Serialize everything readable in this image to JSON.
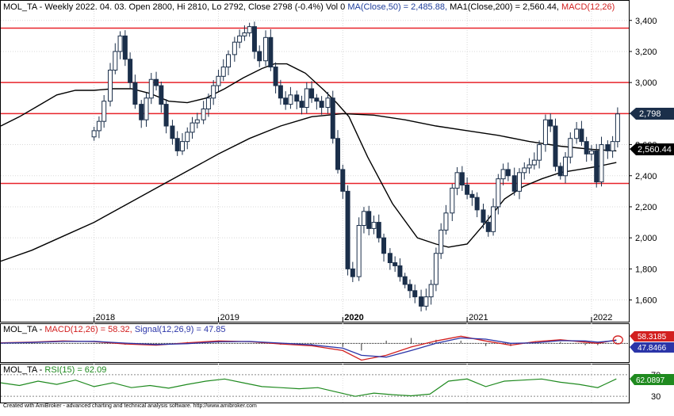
{
  "price_panel": {
    "title_prefix": "MOL_TA - Weekly 2022. 04. 03. Open 2800, Hi 2810, Lo 2792, Close 2798 (-0.4%) Vol 0",
    "ma50_label": "MA(Close,50) = 2,485.88,",
    "ma200_label": "MA1(Close,200) = 2,560.44,",
    "macd_label": "MACD(12,26)",
    "last_close_badge": "2,798",
    "ma200_badge": "2,560.44"
  },
  "macd_panel": {
    "title_prefix": "MOL_TA -",
    "macd_label": "MACD(12,26) = 58.32,",
    "signal_label": "Signal(12,26,9) = 47.85",
    "macd_badge": "58.3185",
    "signal_badge": "47.8466"
  },
  "rsi_panel": {
    "title_prefix": "MOL_TA -",
    "rsi_label": "RSI(15) = 62.09",
    "rsi_badge": "62.0897"
  },
  "footer": "Created with AmiBroker - advanced charting and technical analysis software. http://www.amibroker.com",
  "colors": {
    "candle_up": "#ffffff",
    "candle_down": "#1b2f4a",
    "ma50": "#000000",
    "ma200": "#000000",
    "hline": "#e8232a",
    "macd": "#d21f1f",
    "signal": "#2b35a8",
    "rsi": "#1f8a1f",
    "label_blue": "#1f3f9c",
    "label_red": "#d21f1f",
    "label_green": "#1f8a1f"
  },
  "chart_data": [
    {
      "type": "candlestick",
      "series": [
        {
          "name": "MOL_TA",
          "values": [
            [
              2018.0,
              2690
            ],
            [
              2018.04,
              2750
            ],
            [
              2018.08,
              2880
            ],
            [
              2018.13,
              3080
            ],
            [
              2018.17,
              3200
            ],
            [
              2018.21,
              3300
            ],
            [
              2018.25,
              3150
            ],
            [
              2018.29,
              3000
            ],
            [
              2018.33,
              2860
            ],
            [
              2018.38,
              2760
            ],
            [
              2018.42,
              2900
            ],
            [
              2018.46,
              3020
            ],
            [
              2018.5,
              2980
            ],
            [
              2018.54,
              2860
            ],
            [
              2018.58,
              2720
            ],
            [
              2018.63,
              2640
            ],
            [
              2018.67,
              2560
            ],
            [
              2018.71,
              2620
            ],
            [
              2018.75,
              2680
            ],
            [
              2018.79,
              2740
            ],
            [
              2018.83,
              2760
            ],
            [
              2018.88,
              2830
            ],
            [
              2018.92,
              2900
            ],
            [
              2018.96,
              2980
            ],
            [
              2019.0,
              3040
            ],
            [
              2019.04,
              3100
            ],
            [
              2019.08,
              3180
            ],
            [
              2019.13,
              3260
            ],
            [
              2019.17,
              3300
            ],
            [
              2019.21,
              3320
            ],
            [
              2019.25,
              3360
            ],
            [
              2019.29,
              3200
            ],
            [
              2019.33,
              3140
            ],
            [
              2019.38,
              3290
            ],
            [
              2019.42,
              3100
            ],
            [
              2019.46,
              2980
            ],
            [
              2019.5,
              2900
            ],
            [
              2019.54,
              2860
            ],
            [
              2019.58,
              2920
            ],
            [
              2019.63,
              2880
            ],
            [
              2019.67,
              2840
            ],
            [
              2019.71,
              2960
            ],
            [
              2019.75,
              2900
            ],
            [
              2019.79,
              2880
            ],
            [
              2019.83,
              2840
            ],
            [
              2019.88,
              2900
            ],
            [
              2019.92,
              2640
            ],
            [
              2019.96,
              2440
            ],
            [
              2020.0,
              2300
            ],
            [
              2020.04,
              1800
            ],
            [
              2020.08,
              1750
            ],
            [
              2020.13,
              2080
            ],
            [
              2020.17,
              2170
            ],
            [
              2020.21,
              2060
            ],
            [
              2020.25,
              2100
            ],
            [
              2020.29,
              2000
            ],
            [
              2020.33,
              1900
            ],
            [
              2020.38,
              1840
            ],
            [
              2020.42,
              1820
            ],
            [
              2020.46,
              1750
            ],
            [
              2020.5,
              1700
            ],
            [
              2020.54,
              1660
            ],
            [
              2020.58,
              1620
            ],
            [
              2020.63,
              1560
            ],
            [
              2020.67,
              1620
            ],
            [
              2020.71,
              1700
            ],
            [
              2020.75,
              1900
            ],
            [
              2020.79,
              2050
            ],
            [
              2020.83,
              2160
            ],
            [
              2020.88,
              2320
            ],
            [
              2020.92,
              2420
            ],
            [
              2020.96,
              2340
            ],
            [
              2021.0,
              2280
            ],
            [
              2021.04,
              2260
            ],
            [
              2021.08,
              2180
            ],
            [
              2021.13,
              2100
            ],
            [
              2021.17,
              2040
            ],
            [
              2021.21,
              2200
            ],
            [
              2021.25,
              2380
            ],
            [
              2021.29,
              2440
            ],
            [
              2021.33,
              2400
            ],
            [
              2021.38,
              2300
            ],
            [
              2021.42,
              2420
            ],
            [
              2021.46,
              2450
            ],
            [
              2021.5,
              2470
            ],
            [
              2021.54,
              2500
            ],
            [
              2021.58,
              2600
            ],
            [
              2021.63,
              2760
            ],
            [
              2021.67,
              2720
            ],
            [
              2021.71,
              2460
            ],
            [
              2021.75,
              2400
            ],
            [
              2021.79,
              2520
            ],
            [
              2021.83,
              2640
            ],
            [
              2021.88,
              2700
            ],
            [
              2021.92,
              2620
            ],
            [
              2021.96,
              2540
            ],
            [
              2022.0,
              2560
            ],
            [
              2022.04,
              2360
            ],
            [
              2022.08,
              2600
            ],
            [
              2022.13,
              2560
            ],
            [
              2022.17,
              2620
            ],
            [
              2022.21,
              2798
            ]
          ]
        }
      ],
      "x": [
        "2018",
        "2019",
        "2020",
        "2021",
        "2022"
      ],
      "xlim": [
        2017.25,
        2022.3
      ],
      "ylim": [
        1460,
        3460
      ],
      "y_ticks": [
        "1,600",
        "1,800",
        "2,000",
        "2,200",
        "2,400",
        "2,600",
        "2,800",
        "3,000",
        "3,200",
        "3,400"
      ],
      "horizontal_lines": [
        3350,
        3000,
        2800,
        2350
      ],
      "overlays": [
        {
          "name": "MA(Close,50)",
          "points": [
            [
              2017.25,
              2720
            ],
            [
              2017.4,
              2780
            ],
            [
              2017.55,
              2850
            ],
            [
              2017.7,
              2920
            ],
            [
              2017.85,
              2950
            ],
            [
              2018.0,
              2950
            ],
            [
              2018.15,
              2960
            ],
            [
              2018.3,
              2960
            ],
            [
              2018.45,
              2930
            ],
            [
              2018.6,
              2880
            ],
            [
              2018.75,
              2870
            ],
            [
              2018.9,
              2900
            ],
            [
              2019.05,
              2960
            ],
            [
              2019.2,
              3030
            ],
            [
              2019.35,
              3090
            ],
            [
              2019.45,
              3120
            ],
            [
              2019.55,
              3120
            ],
            [
              2019.7,
              3060
            ],
            [
              2019.85,
              2950
            ],
            [
              2019.95,
              2870
            ],
            [
              2020.05,
              2780
            ],
            [
              2020.2,
              2520
            ],
            [
              2020.4,
              2220
            ],
            [
              2020.6,
              2000
            ],
            [
              2020.75,
              1960
            ],
            [
              2020.85,
              1940
            ],
            [
              2021.0,
              1960
            ],
            [
              2021.15,
              2100
            ],
            [
              2021.3,
              2250
            ],
            [
              2021.45,
              2330
            ],
            [
              2021.6,
              2380
            ],
            [
              2021.75,
              2420
            ],
            [
              2021.9,
              2440
            ],
            [
              2022.05,
              2460
            ],
            [
              2022.2,
              2485
            ]
          ]
        },
        {
          "name": "MA1(Close,200)",
          "points": [
            [
              2017.25,
              1850
            ],
            [
              2017.5,
              1920
            ],
            [
              2017.75,
              2010
            ],
            [
              2018.0,
              2100
            ],
            [
              2018.25,
              2210
            ],
            [
              2018.5,
              2320
            ],
            [
              2018.75,
              2430
            ],
            [
              2019.0,
              2540
            ],
            [
              2019.25,
              2640
            ],
            [
              2019.5,
              2720
            ],
            [
              2019.75,
              2780
            ],
            [
              2020.0,
              2800
            ],
            [
              2020.25,
              2790
            ],
            [
              2020.5,
              2760
            ],
            [
              2020.75,
              2720
            ],
            [
              2021.0,
              2690
            ],
            [
              2021.25,
              2660
            ],
            [
              2021.5,
              2620
            ],
            [
              2021.75,
              2590
            ],
            [
              2022.0,
              2570
            ],
            [
              2022.2,
              2560
            ]
          ]
        }
      ]
    },
    {
      "type": "line",
      "title": "MACD(12,26)",
      "series": [
        {
          "name": "MACD(12,26)",
          "values": [
            [
              2017.25,
              10
            ],
            [
              2017.5,
              20
            ],
            [
              2017.75,
              40
            ],
            [
              2018.0,
              30
            ],
            [
              2018.25,
              -10
            ],
            [
              2018.5,
              -30
            ],
            [
              2018.75,
              10
            ],
            [
              2019.0,
              40
            ],
            [
              2019.25,
              30
            ],
            [
              2019.5,
              -10
            ],
            [
              2019.75,
              -40
            ],
            [
              2020.0,
              -120
            ],
            [
              2020.15,
              -280
            ],
            [
              2020.35,
              -200
            ],
            [
              2020.55,
              -60
            ],
            [
              2020.75,
              40
            ],
            [
              2020.95,
              120
            ],
            [
              2021.15,
              40
            ],
            [
              2021.35,
              -30
            ],
            [
              2021.55,
              30
            ],
            [
              2021.75,
              60
            ],
            [
              2021.95,
              20
            ],
            [
              2022.05,
              0
            ],
            [
              2022.2,
              58.32
            ]
          ]
        },
        {
          "name": "Signal(12,26,9)",
          "values": [
            [
              2017.25,
              5
            ],
            [
              2017.5,
              15
            ],
            [
              2017.75,
              32
            ],
            [
              2018.0,
              34
            ],
            [
              2018.25,
              5
            ],
            [
              2018.5,
              -20
            ],
            [
              2018.75,
              -5
            ],
            [
              2019.0,
              25
            ],
            [
              2019.25,
              32
            ],
            [
              2019.5,
              5
            ],
            [
              2019.75,
              -25
            ],
            [
              2020.0,
              -80
            ],
            [
              2020.15,
              -200
            ],
            [
              2020.35,
              -230
            ],
            [
              2020.55,
              -120
            ],
            [
              2020.75,
              0
            ],
            [
              2020.95,
              90
            ],
            [
              2021.15,
              70
            ],
            [
              2021.35,
              0
            ],
            [
              2021.55,
              10
            ],
            [
              2021.75,
              45
            ],
            [
              2021.95,
              40
            ],
            [
              2022.05,
              20
            ],
            [
              2022.2,
              47.85
            ]
          ]
        }
      ],
      "ylim": [
        -300,
        150
      ]
    },
    {
      "type": "line",
      "title": "RSI(15)",
      "series": [
        {
          "name": "RSI(15)",
          "values": [
            [
              2017.25,
              55
            ],
            [
              2017.4,
              50
            ],
            [
              2017.55,
              58
            ],
            [
              2017.7,
              52
            ],
            [
              2017.85,
              60
            ],
            [
              2018.0,
              48
            ],
            [
              2018.15,
              55
            ],
            [
              2018.3,
              46
            ],
            [
              2018.45,
              50
            ],
            [
              2018.6,
              45
            ],
            [
              2018.75,
              52
            ],
            [
              2018.9,
              58
            ],
            [
              2019.05,
              62
            ],
            [
              2019.2,
              55
            ],
            [
              2019.35,
              48
            ],
            [
              2019.5,
              46
            ],
            [
              2019.65,
              44
            ],
            [
              2019.8,
              46
            ],
            [
              2019.95,
              38
            ],
            [
              2020.1,
              30
            ],
            [
              2020.25,
              36
            ],
            [
              2020.4,
              33
            ],
            [
              2020.55,
              31
            ],
            [
              2020.7,
              34
            ],
            [
              2020.85,
              58
            ],
            [
              2021.0,
              62
            ],
            [
              2021.15,
              48
            ],
            [
              2021.3,
              58
            ],
            [
              2021.45,
              60
            ],
            [
              2021.6,
              62
            ],
            [
              2021.75,
              56
            ],
            [
              2021.9,
              52
            ],
            [
              2022.05,
              46
            ],
            [
              2022.2,
              62.09
            ]
          ]
        }
      ],
      "y_ticks": [
        "70",
        "30"
      ],
      "ylim": [
        20,
        80
      ]
    }
  ]
}
